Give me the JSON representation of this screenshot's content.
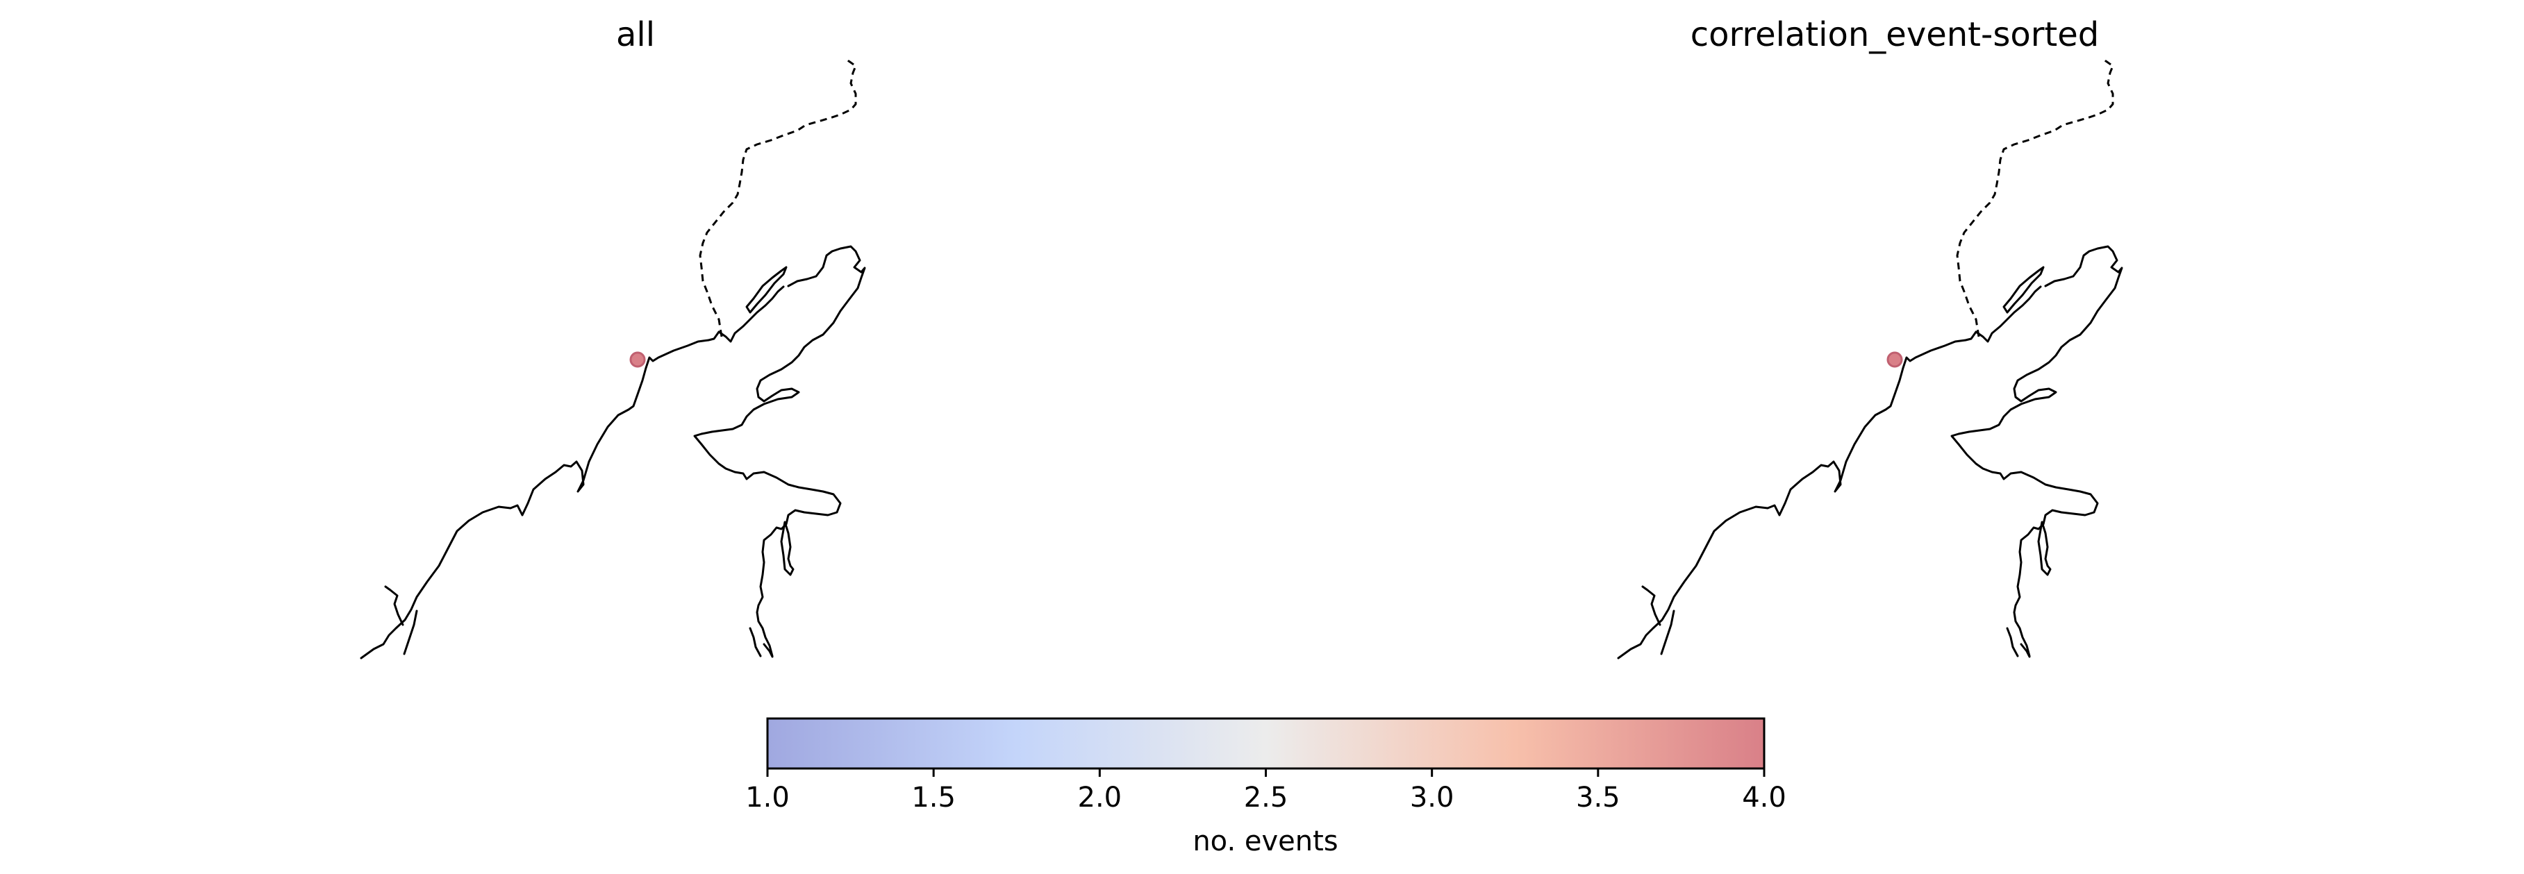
{
  "panels": [
    {
      "title": "all",
      "markers": [
        {
          "events": 4
        }
      ]
    },
    {
      "title": "correlation_event-sorted",
      "markers": [
        {
          "events": 4
        }
      ]
    }
  ],
  "colorbar": {
    "label": "no. events",
    "min": 1.0,
    "max": 4.0,
    "ticks": [
      "1.0",
      "1.5",
      "2.0",
      "2.5",
      "3.0",
      "3.5",
      "4.0"
    ],
    "colormap": "coolwarm",
    "colors": [
      "#a0a8e0",
      "#c4d5fa",
      "#ececec",
      "#f7c0ab",
      "#d98088"
    ]
  }
}
